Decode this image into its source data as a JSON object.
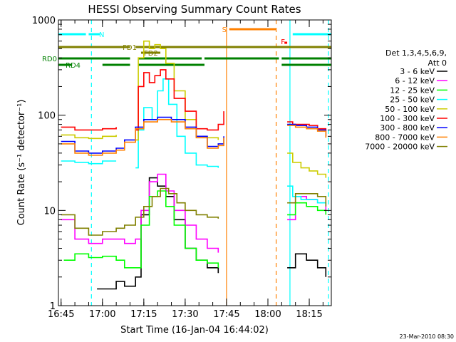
{
  "chart_data": {
    "type": "line",
    "title": "HESSI Observing Summary Count Rates",
    "xlabel": "Start Time (16-Jan-04 16:44:02)",
    "ylabel": "Count Rate (s⁻¹ detector⁻¹)",
    "y_scale": "log",
    "ylim": [
      1,
      1000
    ],
    "xlim": [
      "16:44:02",
      "18:23:00"
    ],
    "x_ticks": [
      "16:45",
      "17:00",
      "17:15",
      "17:30",
      "17:45",
      "18:00",
      "18:15"
    ],
    "y_ticks": [
      "1",
      "10",
      "100",
      "1000"
    ],
    "legend_header": [
      "Det 1,3,4,5,6,9,",
      "Att 0"
    ],
    "legend_placement": "right",
    "footer_date": "23-Mar-2010 08:30",
    "series": [
      {
        "name": "3 - 6 keV",
        "color": "#000000",
        "x": [
          "16:44",
          "16:52",
          "16:58",
          "17:05",
          "17:08",
          "17:12",
          "17:14",
          "17:17",
          "17:20",
          "17:23",
          "17:26",
          "17:30",
          "17:34",
          "17:38",
          "17:42",
          "17:46",
          "18:07",
          "18:10",
          "18:14",
          "18:18",
          "18:21"
        ],
        "y": [
          null,
          null,
          1.5,
          1.8,
          1.6,
          2.0,
          9,
          22,
          18,
          14,
          8,
          4,
          3,
          2.5,
          2.2,
          null,
          2.5,
          3.5,
          3,
          2.5,
          2.0
        ]
      },
      {
        "name": "6 - 12 keV",
        "color": "#ff00ff",
        "x": [
          "16:44",
          "16:45",
          "16:50",
          "16:55",
          "17:00",
          "17:05",
          "17:08",
          "17:12",
          "17:14",
          "17:17",
          "17:20",
          "17:23",
          "17:26",
          "17:30",
          "17:34",
          "17:38",
          "17:42",
          "17:46",
          "18:07",
          "18:10",
          "18:14",
          "18:18",
          "18:21"
        ],
        "y": [
          null,
          8,
          5,
          4.5,
          5,
          5,
          4.5,
          5,
          10,
          20,
          24,
          16,
          10,
          7,
          5,
          4,
          3.6,
          null,
          8,
          14,
          13,
          12,
          10
        ]
      },
      {
        "name": "12 - 25 keV",
        "color": "#00ff00",
        "x": [
          "16:44",
          "16:46",
          "16:50",
          "16:55",
          "17:00",
          "17:05",
          "17:08",
          "17:12",
          "17:14",
          "17:17",
          "17:20",
          "17:23",
          "17:26",
          "17:30",
          "17:34",
          "17:38",
          "17:42",
          "17:46",
          "18:07",
          "18:10",
          "18:14",
          "18:18",
          "18:21"
        ],
        "y": [
          null,
          3,
          3.5,
          3.2,
          3.3,
          3,
          2.5,
          2.5,
          7,
          14,
          16,
          11,
          7,
          4,
          3,
          2.8,
          2.5,
          null,
          9,
          12,
          11,
          10,
          9
        ]
      },
      {
        "name": "25 - 50 keV",
        "color": "#00ffff",
        "x": [
          "16:44",
          "16:45",
          "16:50",
          "16:55",
          "17:00",
          "17:05",
          "17:08",
          "17:12",
          "17:13",
          "17:15",
          "17:18",
          "17:20",
          "17:22",
          "17:24",
          "17:27",
          "17:30",
          "17:34",
          "17:38",
          "17:42",
          "17:46",
          "18:07",
          "18:09",
          "18:12",
          "18:15",
          "18:18",
          "18:21"
        ],
        "y": [
          null,
          33,
          32,
          31,
          33,
          33,
          null,
          28,
          70,
          120,
          90,
          180,
          240,
          130,
          60,
          40,
          30,
          29,
          28,
          null,
          18,
          14,
          13,
          13,
          12,
          11
        ]
      },
      {
        "name": "50 - 100 keV",
        "color": "#cccc00",
        "x": [
          "16:44",
          "16:45",
          "16:50",
          "16:55",
          "17:00",
          "17:05",
          "17:08",
          "17:12",
          "17:13",
          "17:15",
          "17:17",
          "17:19",
          "17:21",
          "17:23",
          "17:26",
          "17:30",
          "17:34",
          "17:38",
          "17:42",
          "17:46",
          "18:07",
          "18:09",
          "18:12",
          "18:15",
          "18:18",
          "18:21"
        ],
        "y": [
          null,
          62,
          58,
          57,
          60,
          62,
          null,
          55,
          400,
          600,
          500,
          550,
          500,
          350,
          180,
          90,
          60,
          58,
          55,
          null,
          40,
          32,
          28,
          26,
          24,
          22
        ]
      },
      {
        "name": "100 - 300 keV",
        "color": "#ff0000",
        "x": [
          "16:44",
          "16:45",
          "16:50",
          "16:55",
          "17:00",
          "17:05",
          "17:08",
          "17:12",
          "17:13",
          "17:15",
          "17:17",
          "17:19",
          "17:21",
          "17:23",
          "17:26",
          "17:30",
          "17:34",
          "17:38",
          "17:42",
          "17:44",
          "17:46",
          "18:07",
          "18:09",
          "18:12",
          "18:15",
          "18:18",
          "18:21"
        ],
        "y": [
          null,
          75,
          70,
          70,
          72,
          75,
          null,
          70,
          200,
          280,
          220,
          260,
          300,
          240,
          150,
          110,
          72,
          70,
          80,
          110,
          null,
          85,
          80,
          80,
          78,
          72,
          60
        ]
      },
      {
        "name": "300 - 800 keV",
        "color": "#0000ff",
        "x": [
          "16:44",
          "16:45",
          "16:50",
          "16:55",
          "17:00",
          "17:05",
          "17:08",
          "17:12",
          "17:15",
          "17:20",
          "17:25",
          "17:30",
          "17:34",
          "17:38",
          "17:42",
          "17:44",
          "17:46",
          "18:07",
          "18:10",
          "18:14",
          "18:18",
          "18:21"
        ],
        "y": [
          null,
          53,
          42,
          40,
          42,
          45,
          55,
          75,
          90,
          95,
          90,
          75,
          60,
          47,
          50,
          60,
          null,
          80,
          78,
          75,
          70,
          60
        ]
      },
      {
        "name": "800 - 7000 keV",
        "color": "#ff8000",
        "x": [
          "16:44",
          "16:45",
          "16:50",
          "16:55",
          "17:00",
          "17:05",
          "17:08",
          "17:12",
          "17:15",
          "17:20",
          "17:25",
          "17:30",
          "17:34",
          "17:38",
          "17:42",
          "17:44",
          "17:46",
          "18:07",
          "18:10",
          "18:14",
          "18:18",
          "18:21"
        ],
        "y": [
          null,
          50,
          40,
          38,
          40,
          43,
          52,
          72,
          85,
          90,
          85,
          72,
          58,
          45,
          48,
          58,
          null,
          78,
          75,
          72,
          68,
          58
        ]
      },
      {
        "name": "7000 - 20000 keV",
        "color": "#808000",
        "x": [
          "16:44",
          "16:45",
          "16:50",
          "16:55",
          "17:00",
          "17:05",
          "17:08",
          "17:12",
          "17:15",
          "17:18",
          "17:21",
          "17:24",
          "17:27",
          "17:30",
          "17:34",
          "17:38",
          "17:42",
          "17:46",
          "18:07",
          "18:10",
          "18:14",
          "18:18",
          "18:21"
        ],
        "y": [
          null,
          9,
          6.5,
          5.5,
          6,
          6.5,
          7,
          8.5,
          11,
          14,
          17,
          15,
          12,
          10,
          9,
          8.5,
          8.2,
          null,
          12,
          15,
          15,
          14,
          11
        ]
      }
    ],
    "flag_bars": [
      {
        "label": "N",
        "color": "#00ffff",
        "y_label": "",
        "spans": [
          [
            "16:44",
            "16:54"
          ],
          [
            "16:55",
            "16:59"
          ],
          [
            "18:09",
            "18:23"
          ]
        ]
      },
      {
        "label": "S",
        "color": "#ff8000",
        "spans": [
          [
            "17:46",
            "18:03"
          ]
        ]
      },
      {
        "label": "F",
        "color": "#ff0000",
        "spans": [
          [
            "18:06",
            "18:07"
          ]
        ]
      },
      {
        "label": "FD1",
        "color": "#808000",
        "spans": [
          [
            "16:44",
            "17:10"
          ],
          [
            "17:12",
            "18:23"
          ]
        ]
      },
      {
        "label": "FD2",
        "color": "#808000",
        "spans": [
          [
            "17:14",
            "17:21"
          ]
        ]
      },
      {
        "label": "RD0",
        "color": "#008000",
        "spans": [
          [
            "16:44",
            "17:10"
          ],
          [
            "17:13",
            "17:36"
          ],
          [
            "17:37",
            "18:04"
          ],
          [
            "18:05",
            "18:23"
          ]
        ]
      },
      {
        "label": "RD4",
        "color": "#008000",
        "spans": [
          [
            "16:44",
            "16:49"
          ],
          [
            "17:00",
            "17:10"
          ],
          [
            "17:13",
            "17:37"
          ],
          [
            "18:05",
            "18:23"
          ]
        ]
      }
    ],
    "vertical_markers": [
      {
        "x": "16:56",
        "color": "#00ffff",
        "style": "dashed"
      },
      {
        "x": "17:45",
        "color": "#ff8000",
        "style": "solid"
      },
      {
        "x": "18:03",
        "color": "#ff8000",
        "style": "dashed"
      },
      {
        "x": "18:08",
        "color": "#00ffff",
        "style": "solid"
      },
      {
        "x": "18:22",
        "color": "#00ffff",
        "style": "dashed"
      }
    ]
  }
}
